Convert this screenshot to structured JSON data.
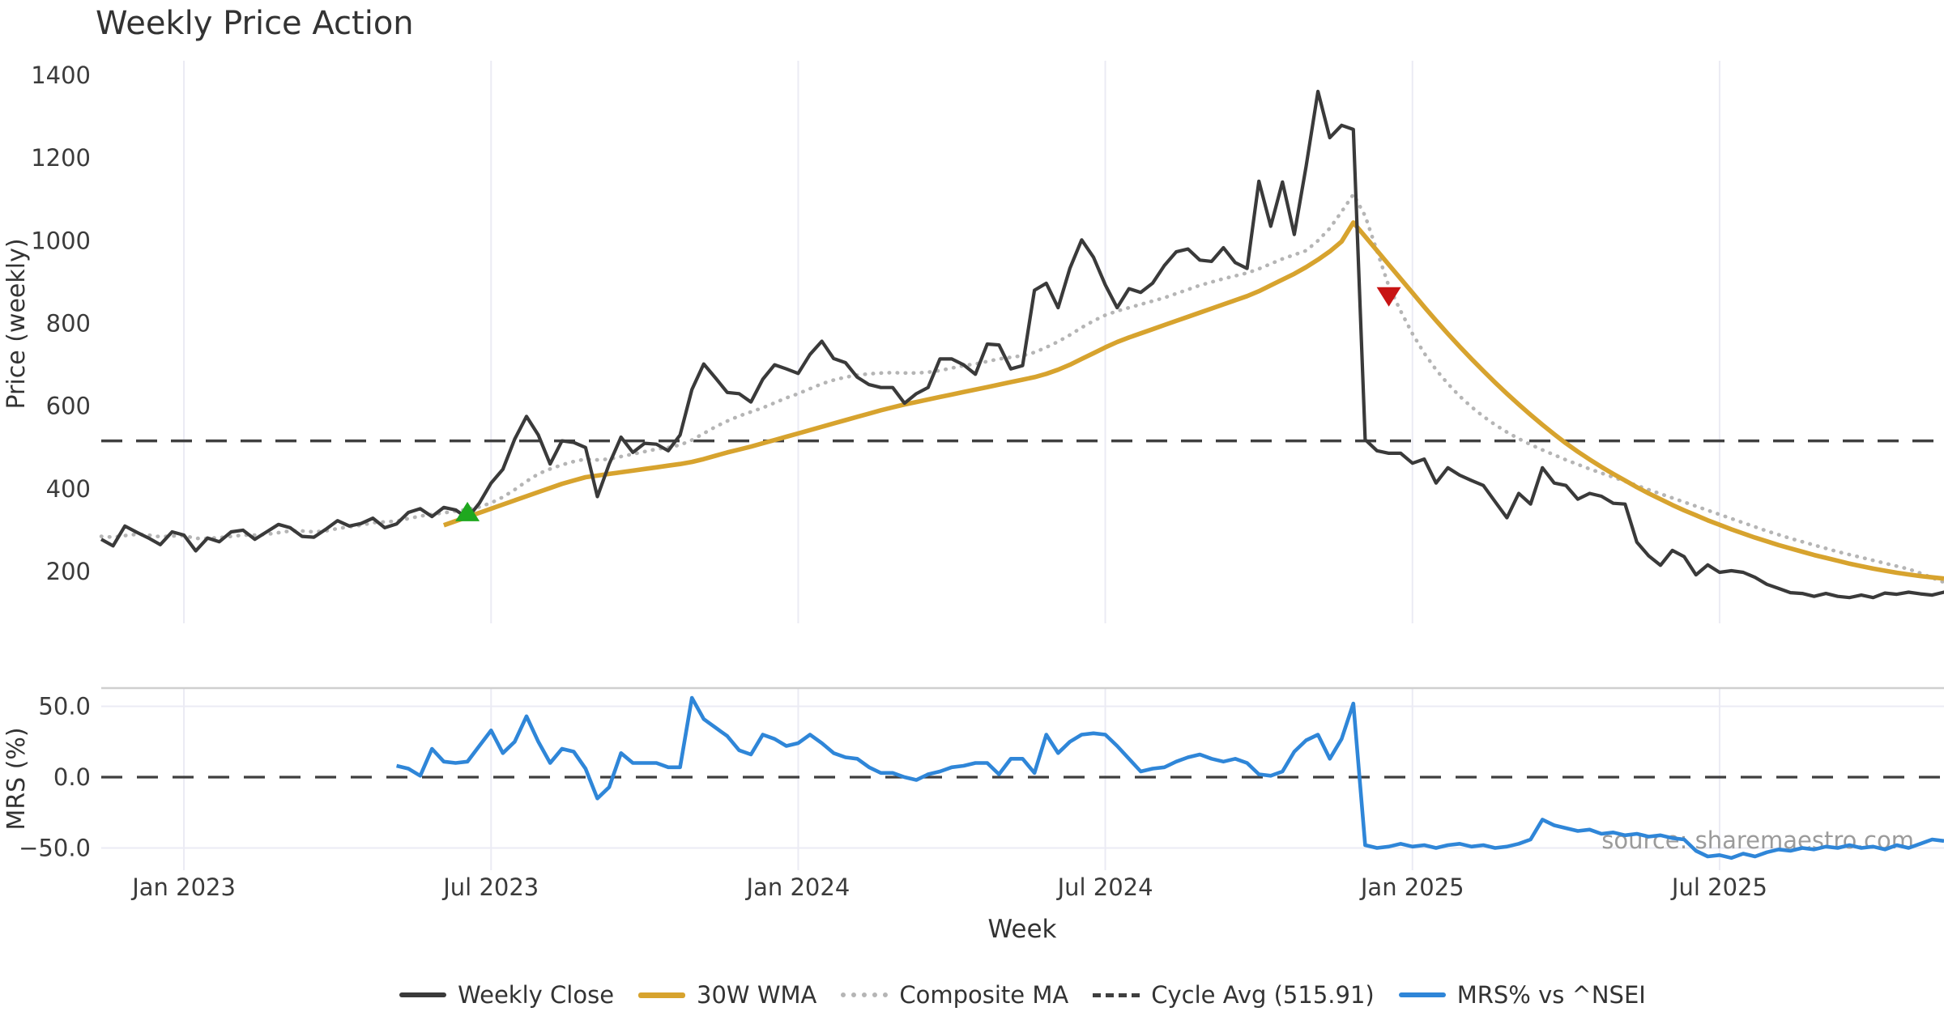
{
  "title": "Weekly Price Action",
  "watermark": "source: sharemaestro.com",
  "colors": {
    "weekly_close": "#3a3a3a",
    "wma_30": "#d7a32e",
    "composite_ma": "#b5b5b5",
    "cycle_avg": "#3f3f3f",
    "mrs": "#2f86d8",
    "buy_marker": "#1fa81f",
    "sell_marker": "#c81414",
    "grid": "#ebebf4",
    "panel_border": "#cfcfcf",
    "tick_text": "#3b3b3b",
    "watermark_text": "#9b9b9b"
  },
  "legend": [
    {
      "label": "Weekly Close",
      "swatch": "solid-dark"
    },
    {
      "label": "30W WMA",
      "swatch": "solid-gold"
    },
    {
      "label": "Composite MA",
      "swatch": "dotted-gray"
    },
    {
      "label": "Cycle Avg (515.91)",
      "swatch": "dashed-dark"
    },
    {
      "label": "MRS% vs ^NSEI",
      "swatch": "solid-blue"
    }
  ],
  "chart_data": {
    "type": "line",
    "x": {
      "label": "Week",
      "n_points": 157,
      "tick_labels": [
        "Jan 2023",
        "Jul 2023",
        "Jan 2024",
        "Jul 2024",
        "Jan 2025",
        "Jul 2025"
      ],
      "tick_indices": [
        7,
        33,
        59,
        85,
        111,
        137
      ]
    },
    "panels": [
      {
        "id": "price",
        "ylabel": "Price (weekly)",
        "yticks": [
          200,
          400,
          600,
          800,
          1000,
          1200,
          1400
        ],
        "ylim": [
          75,
          1435
        ],
        "grid": "vertical"
      },
      {
        "id": "mrs",
        "ylabel": "MRS (%)",
        "yticks": [
          -50.0,
          0.0,
          50.0
        ],
        "ytick_labels": [
          "−50.0",
          "0.0",
          "50.0"
        ],
        "ylim": [
          -66,
          63
        ],
        "zero_line": "dashed"
      }
    ],
    "cycle_avg": 515.91,
    "series": [
      {
        "name": "Weekly Close",
        "panel": "price",
        "style": "solid",
        "color_ref": "weekly_close",
        "start_index": 0,
        "values": [
          278,
          262,
          310,
          295,
          281,
          265,
          296,
          288,
          250,
          281,
          272,
          296,
          300,
          278,
          296,
          314,
          306,
          285,
          283,
          302,
          323,
          310,
          316,
          329,
          306,
          315,
          343,
          352,
          333,
          355,
          349,
          329,
          365,
          414,
          447,
          520,
          575,
          530,
          460,
          516,
          512,
          500,
          381,
          460,
          525,
          488,
          510,
          508,
          492,
          530,
          640,
          702,
          668,
          633,
          630,
          610,
          665,
          700,
          690,
          679,
          725,
          757,
          715,
          705,
          670,
          652,
          645,
          645,
          607,
          630,
          645,
          714,
          714,
          700,
          677,
          750,
          748,
          690,
          698,
          880,
          897,
          838,
          933,
          1002,
          960,
          893,
          838,
          884,
          875,
          897,
          940,
          973,
          980,
          953,
          950,
          983,
          947,
          933,
          1144,
          1035,
          1142,
          1015,
          1180,
          1361,
          1249,
          1279,
          1269,
          519,
          492,
          486,
          486,
          462,
          472,
          414,
          451,
          433,
          420,
          408,
          369,
          330,
          389,
          363,
          451,
          414,
          408,
          375,
          389,
          382,
          365,
          363,
          271,
          238,
          215,
          251,
          236,
          192,
          216,
          198,
          202,
          198,
          186,
          169,
          159,
          149,
          147,
          140,
          147,
          140,
          137,
          143,
          137,
          148,
          145,
          150,
          146,
          143,
          150,
          147
        ]
      },
      {
        "name": "30W WMA",
        "panel": "price",
        "style": "solid",
        "color_ref": "wma_30",
        "start_index": 29,
        "values": [
          312,
          322,
          332,
          342,
          352,
          362,
          372,
          382,
          392,
          402,
          412,
          420,
          428,
          432,
          436,
          440,
          444,
          448,
          452,
          456,
          460,
          465,
          472,
          480,
          488,
          495,
          502,
          510,
          518,
          526,
          534,
          542,
          550,
          558,
          566,
          574,
          582,
          590,
          597,
          604,
          610,
          616,
          622,
          628,
          634,
          640,
          646,
          652,
          658,
          664,
          670,
          678,
          688,
          700,
          714,
          728,
          742,
          755,
          766,
          776,
          786,
          796,
          806,
          816,
          826,
          836,
          846,
          856,
          866,
          878,
          892,
          906,
          920,
          936,
          954,
          974,
          998,
          1044,
          1010,
          976,
          942,
          908,
          874,
          840,
          807,
          775,
          744,
          714,
          685,
          657,
          630,
          604,
          579,
          555,
          532,
          510,
          490,
          471,
          453,
          436,
          420,
          404,
          389,
          375,
          361,
          348,
          336,
          324,
          313,
          302,
          292,
          282,
          273,
          264,
          256,
          248,
          240,
          233,
          226,
          219,
          213,
          207,
          202,
          197,
          193,
          189,
          186,
          183
        ]
      },
      {
        "name": "Composite MA",
        "panel": "price",
        "style": "dotted",
        "color_ref": "composite_ma",
        "start_index": 0,
        "values": [
          285,
          283,
          287,
          290,
          288,
          284,
          286,
          287,
          280,
          280,
          282,
          285,
          288,
          288,
          290,
          294,
          298,
          298,
          296,
          298,
          304,
          308,
          312,
          318,
          320,
          322,
          328,
          334,
          338,
          342,
          346,
          350,
          356,
          366,
          380,
          398,
          418,
          436,
          448,
          458,
          466,
          472,
          470,
          472,
          478,
          484,
          490,
          496,
          500,
          506,
          518,
          534,
          550,
          564,
          576,
          586,
          596,
          608,
          620,
          630,
          642,
          654,
          663,
          670,
          675,
          678,
          680,
          681,
          680,
          680,
          682,
          686,
          692,
          698,
          702,
          708,
          714,
          718,
          722,
          730,
          742,
          756,
          772,
          790,
          806,
          820,
          830,
          838,
          846,
          854,
          862,
          872,
          882,
          892,
          900,
          908,
          915,
          922,
          932,
          944,
          956,
          966,
          976,
          1000,
          1030,
          1070,
          1112,
          1060,
          975,
          890,
          830,
          775,
          728,
          688,
          654,
          624,
          598,
          575,
          555,
          537,
          521,
          507,
          494,
          482,
          470,
          459,
          448,
          438,
          428,
          418,
          408,
          398,
          388,
          378,
          368,
          358,
          348,
          338,
          328,
          318,
          308,
          298,
          289,
          280,
          272,
          264,
          256,
          248,
          241,
          234,
          227,
          220,
          213,
          206,
          196,
          185,
          174
        ]
      },
      {
        "name": "MRS% vs ^NSEI",
        "panel": "mrs",
        "style": "solid",
        "color_ref": "mrs",
        "start_index": 25,
        "values": [
          8,
          6,
          1,
          20,
          11,
          10,
          11,
          22,
          33,
          17,
          25,
          43,
          25,
          10,
          20,
          18,
          6,
          -15,
          -7,
          17,
          10,
          10,
          10,
          7,
          7,
          56,
          41,
          35,
          29,
          19,
          16,
          30,
          27,
          22,
          24,
          30,
          24,
          17,
          14,
          13,
          7,
          3,
          3,
          0,
          -2,
          2,
          4,
          7,
          8,
          10,
          10,
          2,
          13,
          13,
          3,
          30,
          17,
          25,
          30,
          31,
          30,
          22,
          13,
          4,
          6,
          7,
          11,
          14,
          16,
          13,
          11,
          13,
          10,
          2,
          1,
          4,
          18,
          26,
          30,
          13,
          27,
          52,
          -48,
          -50,
          -49,
          -47,
          -49,
          -48,
          -50,
          -48,
          -47,
          -49,
          -48,
          -50,
          -49,
          -47,
          -44,
          -30,
          -34,
          -36,
          -38,
          -37,
          -40,
          -39,
          -41,
          -40,
          -42,
          -41,
          -43,
          -44,
          -52,
          -56,
          -55,
          -57,
          -54,
          -56,
          -53,
          -51,
          -52,
          -50,
          -51,
          -49,
          -50,
          -48,
          -50,
          -49,
          -51,
          -48,
          -50,
          -47,
          -44,
          -45
        ]
      }
    ],
    "markers": [
      {
        "name": "buy-signal",
        "shape": "triangle-up",
        "index": 31,
        "value": 345,
        "color_ref": "buy_marker"
      },
      {
        "name": "sell-signal",
        "shape": "triangle-down",
        "index": 109,
        "value": 864,
        "color_ref": "sell_marker"
      }
    ]
  }
}
